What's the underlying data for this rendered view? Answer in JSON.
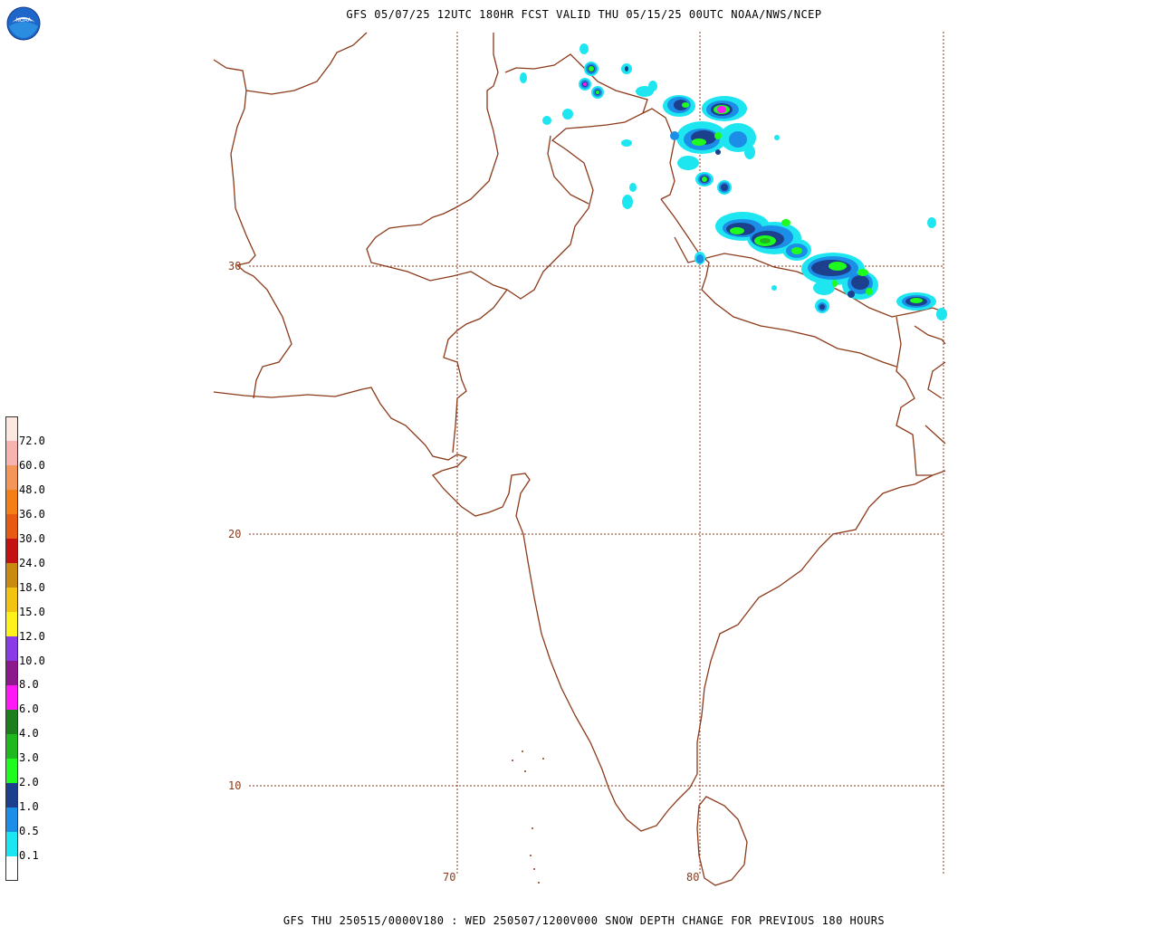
{
  "header": {
    "title": "GFS 05/07/25 12UTC 180HR FCST VALID THU 05/15/25 00UTC NOAA/NWS/NCEP",
    "logo_text": "NOAA"
  },
  "footer": {
    "caption": "GFS THU 250515/0000V180 : WED 250507/1200V000 SNOW DEPTH CHANGE FOR PREVIOUS 180 HOURS"
  },
  "map": {
    "latitude_labels": [
      "30",
      "20",
      "10"
    ],
    "longitude_labels": [
      "70",
      "80"
    ],
    "coastline_color": "#8b3a1a",
    "gridline_color": "#8b3a1a"
  },
  "legend": {
    "labels": [
      "72.0",
      "60.0",
      "48.0",
      "36.0",
      "30.0",
      "24.0",
      "18.0",
      "15.0",
      "12.0",
      "10.0",
      "8.0",
      "6.0",
      "4.0",
      "3.0",
      "2.0",
      "1.0",
      "0.5",
      "0.1"
    ],
    "colors": [
      "#fbe9e0",
      "#f6b3b0",
      "#f4955a",
      "#f57f17",
      "#e65a13",
      "#c41212",
      "#c98a10",
      "#f3c312",
      "#fff21a",
      "#8a3ae6",
      "#8c1a8c",
      "#ff19f4",
      "#1c7f1c",
      "#1fb91f",
      "#1ffb1f",
      "#1c3f8e",
      "#1c8ee8",
      "#1de6f0",
      "#ffffff"
    ]
  }
}
